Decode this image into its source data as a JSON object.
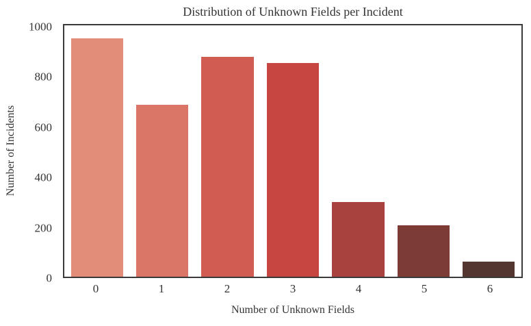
{
  "chart_data": {
    "type": "bar",
    "title": "Distribution of Unknown Fields per Incident",
    "xlabel": "Number of Unknown Fields",
    "ylabel": "Number of Incidents",
    "categories": [
      "0",
      "1",
      "2",
      "3",
      "4",
      "5",
      "6"
    ],
    "values": [
      957,
      692,
      883,
      860,
      300,
      207,
      60
    ],
    "bar_colors": [
      "#e28d79",
      "#d97668",
      "#d15c52",
      "#c84641",
      "#a8423e",
      "#7d3b36",
      "#543631"
    ],
    "ylim": [
      0,
      1010
    ],
    "yticks": [
      0,
      200,
      400,
      600,
      800,
      1000
    ],
    "grid": false,
    "legend": null,
    "bar_width_fraction": 0.8
  },
  "styles": {
    "text_color": "#333333",
    "spine_color": "#3a3a3a",
    "background": "#ffffff"
  }
}
